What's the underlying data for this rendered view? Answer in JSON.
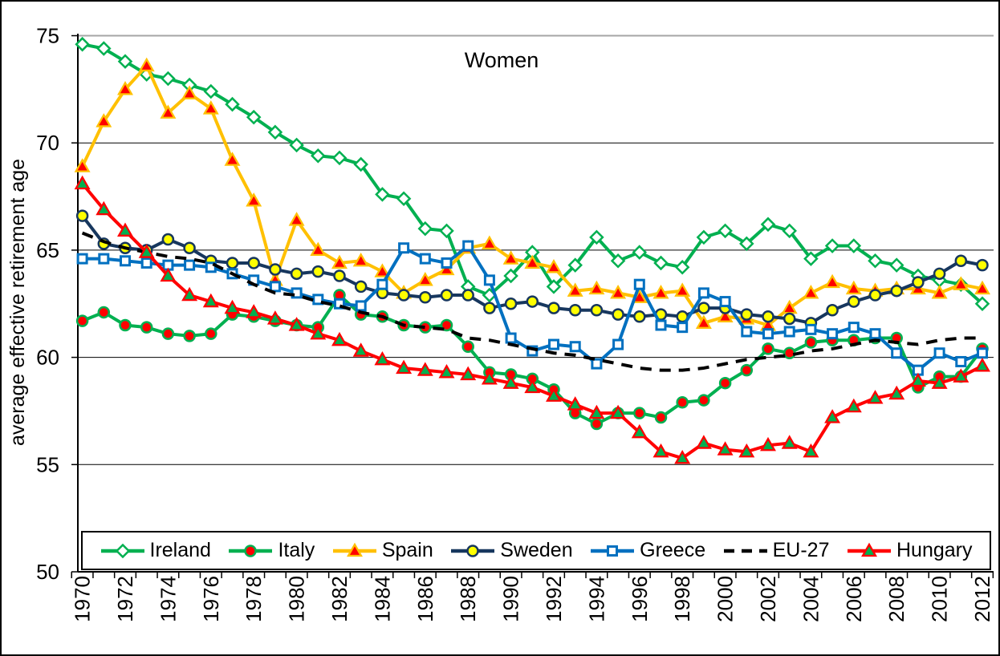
{
  "chart_data": {
    "type": "line",
    "title": "Women",
    "ylabel": "average effective retirement age",
    "ylim": [
      50,
      75
    ],
    "y_ticks": [
      50,
      55,
      60,
      65,
      70,
      75
    ],
    "grid": "horizontal",
    "legend_position": "bottom-inside",
    "x": [
      1970,
      1971,
      1972,
      1973,
      1974,
      1975,
      1976,
      1977,
      1978,
      1979,
      1980,
      1981,
      1982,
      1983,
      1984,
      1985,
      1986,
      1987,
      1988,
      1989,
      1990,
      1991,
      1992,
      1993,
      1994,
      1995,
      1996,
      1997,
      1998,
      1999,
      2000,
      2001,
      2002,
      2003,
      2004,
      2005,
      2006,
      2007,
      2008,
      2009,
      2010,
      2011,
      2012
    ],
    "x_tick_labels": [
      "1970",
      "1972",
      "1974",
      "1976",
      "1978",
      "1980",
      "1982",
      "1984",
      "1986",
      "1988",
      "1990",
      "1992",
      "1994",
      "1996",
      "1998",
      "2000",
      "2002",
      "2004",
      "2006",
      "2008",
      "2010",
      "2012"
    ],
    "series": [
      {
        "name": "Ireland",
        "color": "#00B050",
        "marker": "diamond",
        "marker_fill": "#FFFFFF",
        "marker_stroke": "#00B050",
        "dash": null,
        "values": [
          74.6,
          74.4,
          73.8,
          73.2,
          73.0,
          72.7,
          72.4,
          71.8,
          71.2,
          70.5,
          69.9,
          69.4,
          69.3,
          69.0,
          67.6,
          67.4,
          66.0,
          65.9,
          63.3,
          62.9,
          63.8,
          64.9,
          63.3,
          64.3,
          65.6,
          64.5,
          64.9,
          64.4,
          64.2,
          65.6,
          65.9,
          65.3,
          66.2,
          65.9,
          64.6,
          65.2,
          65.2,
          64.5,
          64.3,
          63.8,
          63.6,
          63.4,
          62.5
        ]
      },
      {
        "name": "Italy",
        "color": "#00B050",
        "marker": "circle",
        "marker_fill": "#FF0000",
        "marker_stroke": "#00B050",
        "dash": null,
        "values": [
          61.7,
          62.1,
          61.5,
          61.4,
          61.1,
          61.0,
          61.1,
          62.0,
          61.9,
          61.7,
          61.5,
          61.4,
          62.9,
          62.0,
          61.9,
          61.5,
          61.4,
          61.5,
          60.5,
          59.3,
          59.2,
          59.0,
          58.5,
          57.4,
          56.9,
          57.4,
          57.4,
          57.2,
          57.9,
          58.0,
          58.8,
          59.4,
          60.4,
          60.2,
          60.7,
          60.8,
          60.8,
          60.9,
          60.9,
          58.6,
          59.1,
          59.1,
          60.4
        ]
      },
      {
        "name": "Spain",
        "color": "#FFC000",
        "marker": "triangle",
        "marker_fill": "#FF0000",
        "marker_stroke": "#FFC000",
        "dash": null,
        "values": [
          68.9,
          71.0,
          72.5,
          73.6,
          71.4,
          72.3,
          71.6,
          69.2,
          67.3,
          63.6,
          66.4,
          65.0,
          64.4,
          64.5,
          64.0,
          63.0,
          63.6,
          64.1,
          65.1,
          65.3,
          64.6,
          64.4,
          64.2,
          63.1,
          63.2,
          63.0,
          62.8,
          63.0,
          63.1,
          61.6,
          61.9,
          61.8,
          61.5,
          62.3,
          63.0,
          63.5,
          63.2,
          63.1,
          63.2,
          63.2,
          63.0,
          63.4,
          63.2
        ]
      },
      {
        "name": "Sweden",
        "color": "#17375E",
        "marker": "circle",
        "marker_fill": "#FFFF00",
        "marker_stroke": "#17375E",
        "dash": null,
        "values": [
          66.6,
          65.3,
          65.1,
          65.0,
          65.5,
          65.1,
          64.5,
          64.4,
          64.4,
          64.1,
          63.9,
          64.0,
          63.8,
          63.3,
          63.0,
          62.9,
          62.8,
          62.9,
          62.9,
          62.3,
          62.5,
          62.6,
          62.3,
          62.2,
          62.2,
          62.0,
          61.9,
          62.0,
          61.9,
          62.3,
          62.3,
          62.0,
          61.9,
          61.8,
          61.6,
          62.2,
          62.6,
          62.9,
          63.1,
          63.5,
          63.9,
          64.5,
          64.3
        ]
      },
      {
        "name": "Greece",
        "color": "#0070C0",
        "marker": "square",
        "marker_fill": "#FFFFFF",
        "marker_stroke": "#0070C0",
        "dash": null,
        "values": [
          64.6,
          64.6,
          64.5,
          64.4,
          64.3,
          64.3,
          64.2,
          63.9,
          63.6,
          63.3,
          63.0,
          62.7,
          62.5,
          62.4,
          63.4,
          65.1,
          64.6,
          64.4,
          65.2,
          63.6,
          60.9,
          60.3,
          60.6,
          60.5,
          59.7,
          60.6,
          63.4,
          61.5,
          61.4,
          63.0,
          62.6,
          61.2,
          61.1,
          61.2,
          61.3,
          61.1,
          61.4,
          61.1,
          60.2,
          59.4,
          60.2,
          59.8,
          60.2
        ]
      },
      {
        "name": "EU-27",
        "color": "#000000",
        "marker": "none",
        "marker_fill": null,
        "marker_stroke": null,
        "dash": [
          14,
          10
        ],
        "values": [
          65.8,
          65.4,
          65.1,
          64.9,
          64.7,
          64.6,
          64.4,
          63.9,
          63.4,
          63.0,
          62.9,
          62.6,
          62.4,
          62.1,
          61.9,
          61.5,
          61.4,
          61.3,
          60.9,
          60.8,
          60.6,
          60.4,
          60.2,
          60.1,
          59.9,
          59.7,
          59.5,
          59.4,
          59.4,
          59.5,
          59.7,
          59.9,
          60.0,
          60.1,
          60.3,
          60.4,
          60.6,
          60.8,
          60.7,
          60.6,
          60.8,
          60.9,
          60.9
        ]
      },
      {
        "name": "Hungary",
        "color": "#FF0000",
        "marker": "triangle",
        "marker_fill": "#00B050",
        "marker_stroke": "#FF0000",
        "dash": null,
        "values": [
          68.1,
          66.9,
          65.9,
          64.9,
          63.8,
          62.9,
          62.6,
          62.3,
          62.1,
          61.8,
          61.5,
          61.1,
          60.8,
          60.3,
          59.9,
          59.5,
          59.4,
          59.3,
          59.2,
          59.0,
          58.8,
          58.6,
          58.2,
          57.8,
          57.4,
          57.4,
          56.5,
          55.6,
          55.3,
          56.0,
          55.7,
          55.6,
          55.9,
          56.0,
          55.6,
          57.2,
          57.7,
          58.1,
          58.3,
          58.9,
          58.8,
          59.1,
          59.6
        ]
      }
    ],
    "axis_color": "#000000",
    "top_gridline_color": "#A6A6A6"
  }
}
